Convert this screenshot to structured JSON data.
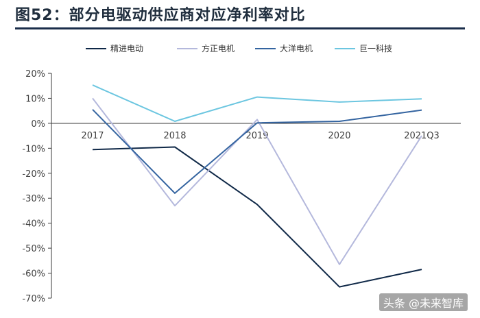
{
  "chart_data": {
    "type": "line",
    "title": "图52：部分电驱动供应商对应净利率对比",
    "categories": [
      "2017",
      "2018",
      "2019",
      "2020",
      "2021Q3"
    ],
    "yticks": [
      "20%",
      "10%",
      "0%",
      "-10%",
      "-20%",
      "-30%",
      "-40%",
      "-50%",
      "-60%",
      "-70%"
    ],
    "ylim": [
      -70,
      20
    ],
    "ylabel": "",
    "xlabel": "",
    "legend_position": "top",
    "grid": false,
    "series": [
      {
        "name": "精进电动",
        "color": "#0f2847",
        "values": [
          -10.5,
          -9.5,
          -32.5,
          -65.5,
          -58.5
        ]
      },
      {
        "name": "方正电机",
        "color": "#b4b8dc",
        "values": [
          10.0,
          -33.0,
          1.5,
          -56.5,
          -5.0
        ]
      },
      {
        "name": "大洋电机",
        "color": "#3464a0",
        "values": [
          5.5,
          -28.0,
          0.2,
          0.8,
          5.3
        ]
      },
      {
        "name": "巨一科技",
        "color": "#6cc6e0",
        "values": [
          15.3,
          0.8,
          10.5,
          8.5,
          9.8
        ]
      }
    ]
  },
  "watermark": "头条 @未来智库"
}
